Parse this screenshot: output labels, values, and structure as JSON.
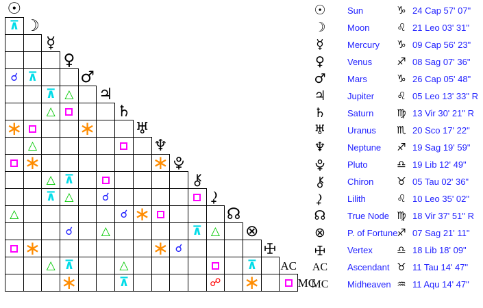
{
  "colors": {
    "background": "#ffffff",
    "grid_line": "#000000",
    "glyph": "#000000",
    "table_text": "#1f1fff",
    "aspect_conjunction": "#1f1fff",
    "aspect_opposition": "#ff0000",
    "aspect_square": "#ff00ff",
    "aspect_trine": "#00c800",
    "aspect_sextile": "#ff8c00",
    "aspect_quincunx": "#00dce8"
  },
  "aspect_types": {
    "conjunction": {
      "glyph": "☌",
      "color": "#1f1fff"
    },
    "opposition": {
      "glyph": "☍",
      "color": "#ff0000"
    },
    "square": {
      "glyph": "css-square-box",
      "color": "#ff00ff"
    },
    "trine": {
      "glyph": "△",
      "color": "#00c800"
    },
    "sextile": {
      "glyph": "∗",
      "color": "#ff8c00"
    },
    "quincunx": {
      "glyph": "⊼",
      "color": "#00dce8"
    }
  },
  "planets": [
    {
      "name": "Sun",
      "icon": "sun-icon",
      "glyph": "☉",
      "sign": "Cap",
      "sign_icon": "capricorn-icon",
      "sign_glyph": "♑",
      "position": "24 Cap 57' 07\""
    },
    {
      "name": "Moon",
      "icon": "moon-icon",
      "glyph": "☽",
      "sign": "Leo",
      "sign_icon": "leo-icon",
      "sign_glyph": "♌",
      "position": "21 Leo 03' 31\""
    },
    {
      "name": "Mercury",
      "icon": "mercury-icon",
      "glyph": "☿",
      "sign": "Cap",
      "sign_icon": "capricorn-icon",
      "sign_glyph": "♑",
      "position": "09 Cap 56' 23\""
    },
    {
      "name": "Venus",
      "icon": "venus-icon",
      "glyph": "♀",
      "sign": "Sag",
      "sign_icon": "sagittarius-icon",
      "sign_glyph": "♐",
      "position": "08 Sag 07' 36\""
    },
    {
      "name": "Mars",
      "icon": "mars-icon",
      "glyph": "♂",
      "sign": "Cap",
      "sign_icon": "capricorn-icon",
      "sign_glyph": "♑",
      "position": "26 Cap 05' 48\""
    },
    {
      "name": "Jupiter",
      "icon": "jupiter-icon",
      "glyph": "♃",
      "sign": "Leo",
      "sign_icon": "leo-icon",
      "sign_glyph": "♌",
      "position": "05 Leo 13' 33\" R"
    },
    {
      "name": "Saturn",
      "icon": "saturn-icon",
      "glyph": "♄",
      "sign": "Vir",
      "sign_icon": "virgo-icon",
      "sign_glyph": "♍",
      "position": "13 Vir 30' 21\" R"
    },
    {
      "name": "Uranus",
      "icon": "uranus-icon",
      "glyph": "♅",
      "sign": "Sco",
      "sign_icon": "scorpio-icon",
      "sign_glyph": "♏",
      "position": "20 Sco 17' 22\""
    },
    {
      "name": "Neptune",
      "icon": "neptune-icon",
      "glyph": "♆",
      "sign": "Sag",
      "sign_icon": "sagittarius-icon",
      "sign_glyph": "♐",
      "position": "19 Sag 19' 59\""
    },
    {
      "name": "Pluto",
      "icon": "pluto-icon",
      "glyph": "",
      "sign": "Lib",
      "sign_icon": "libra-icon",
      "sign_glyph": "♎",
      "position": "19 Lib 12' 49\""
    },
    {
      "name": "Chiron",
      "icon": "chiron-icon",
      "glyph": "",
      "sign": "Tau",
      "sign_icon": "taurus-icon",
      "sign_glyph": "♉",
      "position": "05 Tau 02' 36\""
    },
    {
      "name": "Lilith",
      "icon": "lilith-icon",
      "glyph": "",
      "sign": "Leo",
      "sign_icon": "leo-icon",
      "sign_glyph": "♌",
      "position": "10 Leo 35' 02\""
    },
    {
      "name": "True Node",
      "icon": "true-node-icon",
      "glyph": "☊",
      "sign": "Vir",
      "sign_icon": "virgo-icon",
      "sign_glyph": "♍",
      "position": "18 Vir 37' 51\" R"
    },
    {
      "name": "P. of Fortune",
      "icon": "fortune-icon",
      "glyph": "⊗",
      "sign": "Sag",
      "sign_icon": "sagittarius-icon",
      "sign_glyph": "♐",
      "position": "07 Sag 21' 11\""
    },
    {
      "name": "Vertex",
      "icon": "vertex-icon",
      "glyph": "",
      "sign": "Lib",
      "sign_icon": "libra-icon",
      "sign_glyph": "♎",
      "position": "18 Lib 18' 09\""
    },
    {
      "name": "Ascendant",
      "icon": "ascendant-label",
      "glyph": "AC",
      "diagonal_label": "AC",
      "sign": "Tau",
      "sign_icon": "taurus-icon",
      "sign_glyph": "♉",
      "position": "11 Tau 14' 47\""
    },
    {
      "name": "Midheaven",
      "icon": "midheaven-label",
      "glyph": "MC",
      "diagonal_label": "MC",
      "sign": "Aqu",
      "sign_icon": "aquarius-icon",
      "sign_glyph": "♒",
      "position": "11 Aqu 14' 47\""
    }
  ],
  "aspects": [
    {
      "between": [
        "Moon",
        "Sun"
      ],
      "type": "quincunx"
    },
    {
      "between": [
        "Mars",
        "Sun"
      ],
      "type": "conjunction"
    },
    {
      "between": [
        "Mars",
        "Moon"
      ],
      "type": "quincunx"
    },
    {
      "between": [
        "Jupiter",
        "Mercury"
      ],
      "type": "quincunx"
    },
    {
      "between": [
        "Jupiter",
        "Venus"
      ],
      "type": "trine"
    },
    {
      "between": [
        "Saturn",
        "Mercury"
      ],
      "type": "trine"
    },
    {
      "between": [
        "Saturn",
        "Venus"
      ],
      "type": "square"
    },
    {
      "between": [
        "Uranus",
        "Sun"
      ],
      "type": "sextile"
    },
    {
      "between": [
        "Uranus",
        "Moon"
      ],
      "type": "square"
    },
    {
      "between": [
        "Uranus",
        "Mars"
      ],
      "type": "sextile"
    },
    {
      "between": [
        "Neptune",
        "Moon"
      ],
      "type": "trine"
    },
    {
      "between": [
        "Neptune",
        "Saturn"
      ],
      "type": "square"
    },
    {
      "between": [
        "Pluto",
        "Sun"
      ],
      "type": "square"
    },
    {
      "between": [
        "Pluto",
        "Moon"
      ],
      "type": "sextile"
    },
    {
      "between": [
        "Pluto",
        "Neptune"
      ],
      "type": "sextile"
    },
    {
      "between": [
        "Chiron",
        "Mercury"
      ],
      "type": "trine"
    },
    {
      "between": [
        "Chiron",
        "Venus"
      ],
      "type": "quincunx"
    },
    {
      "between": [
        "Chiron",
        "Jupiter"
      ],
      "type": "square"
    },
    {
      "between": [
        "Lilith",
        "Mercury"
      ],
      "type": "quincunx"
    },
    {
      "between": [
        "Lilith",
        "Venus"
      ],
      "type": "trine"
    },
    {
      "between": [
        "Lilith",
        "Jupiter"
      ],
      "type": "conjunction"
    },
    {
      "between": [
        "Lilith",
        "Chiron"
      ],
      "type": "square"
    },
    {
      "between": [
        "True Node",
        "Sun"
      ],
      "type": "trine"
    },
    {
      "between": [
        "True Node",
        "Saturn"
      ],
      "type": "conjunction"
    },
    {
      "between": [
        "True Node",
        "Uranus"
      ],
      "type": "sextile"
    },
    {
      "between": [
        "True Node",
        "Neptune"
      ],
      "type": "square"
    },
    {
      "between": [
        "P. of Fortune",
        "Venus"
      ],
      "type": "conjunction"
    },
    {
      "between": [
        "P. of Fortune",
        "Jupiter"
      ],
      "type": "trine"
    },
    {
      "between": [
        "P. of Fortune",
        "Chiron"
      ],
      "type": "quincunx"
    },
    {
      "between": [
        "P. of Fortune",
        "Lilith"
      ],
      "type": "trine"
    },
    {
      "between": [
        "Vertex",
        "Sun"
      ],
      "type": "square"
    },
    {
      "between": [
        "Vertex",
        "Moon"
      ],
      "type": "sextile"
    },
    {
      "between": [
        "Vertex",
        "Neptune"
      ],
      "type": "sextile"
    },
    {
      "between": [
        "Vertex",
        "Pluto"
      ],
      "type": "conjunction"
    },
    {
      "between": [
        "Ascendant",
        "Mercury"
      ],
      "type": "trine"
    },
    {
      "between": [
        "Ascendant",
        "Venus"
      ],
      "type": "quincunx"
    },
    {
      "between": [
        "Ascendant",
        "Saturn"
      ],
      "type": "trine"
    },
    {
      "between": [
        "Ascendant",
        "Lilith"
      ],
      "type": "square"
    },
    {
      "between": [
        "Ascendant",
        "P. of Fortune"
      ],
      "type": "quincunx"
    },
    {
      "between": [
        "Midheaven",
        "Venus"
      ],
      "type": "sextile"
    },
    {
      "between": [
        "Midheaven",
        "Saturn"
      ],
      "type": "quincunx"
    },
    {
      "between": [
        "Midheaven",
        "Lilith"
      ],
      "type": "opposition"
    },
    {
      "between": [
        "Midheaven",
        "P. of Fortune"
      ],
      "type": "sextile"
    },
    {
      "between": [
        "Midheaven",
        "Ascendant"
      ],
      "type": "square"
    }
  ]
}
